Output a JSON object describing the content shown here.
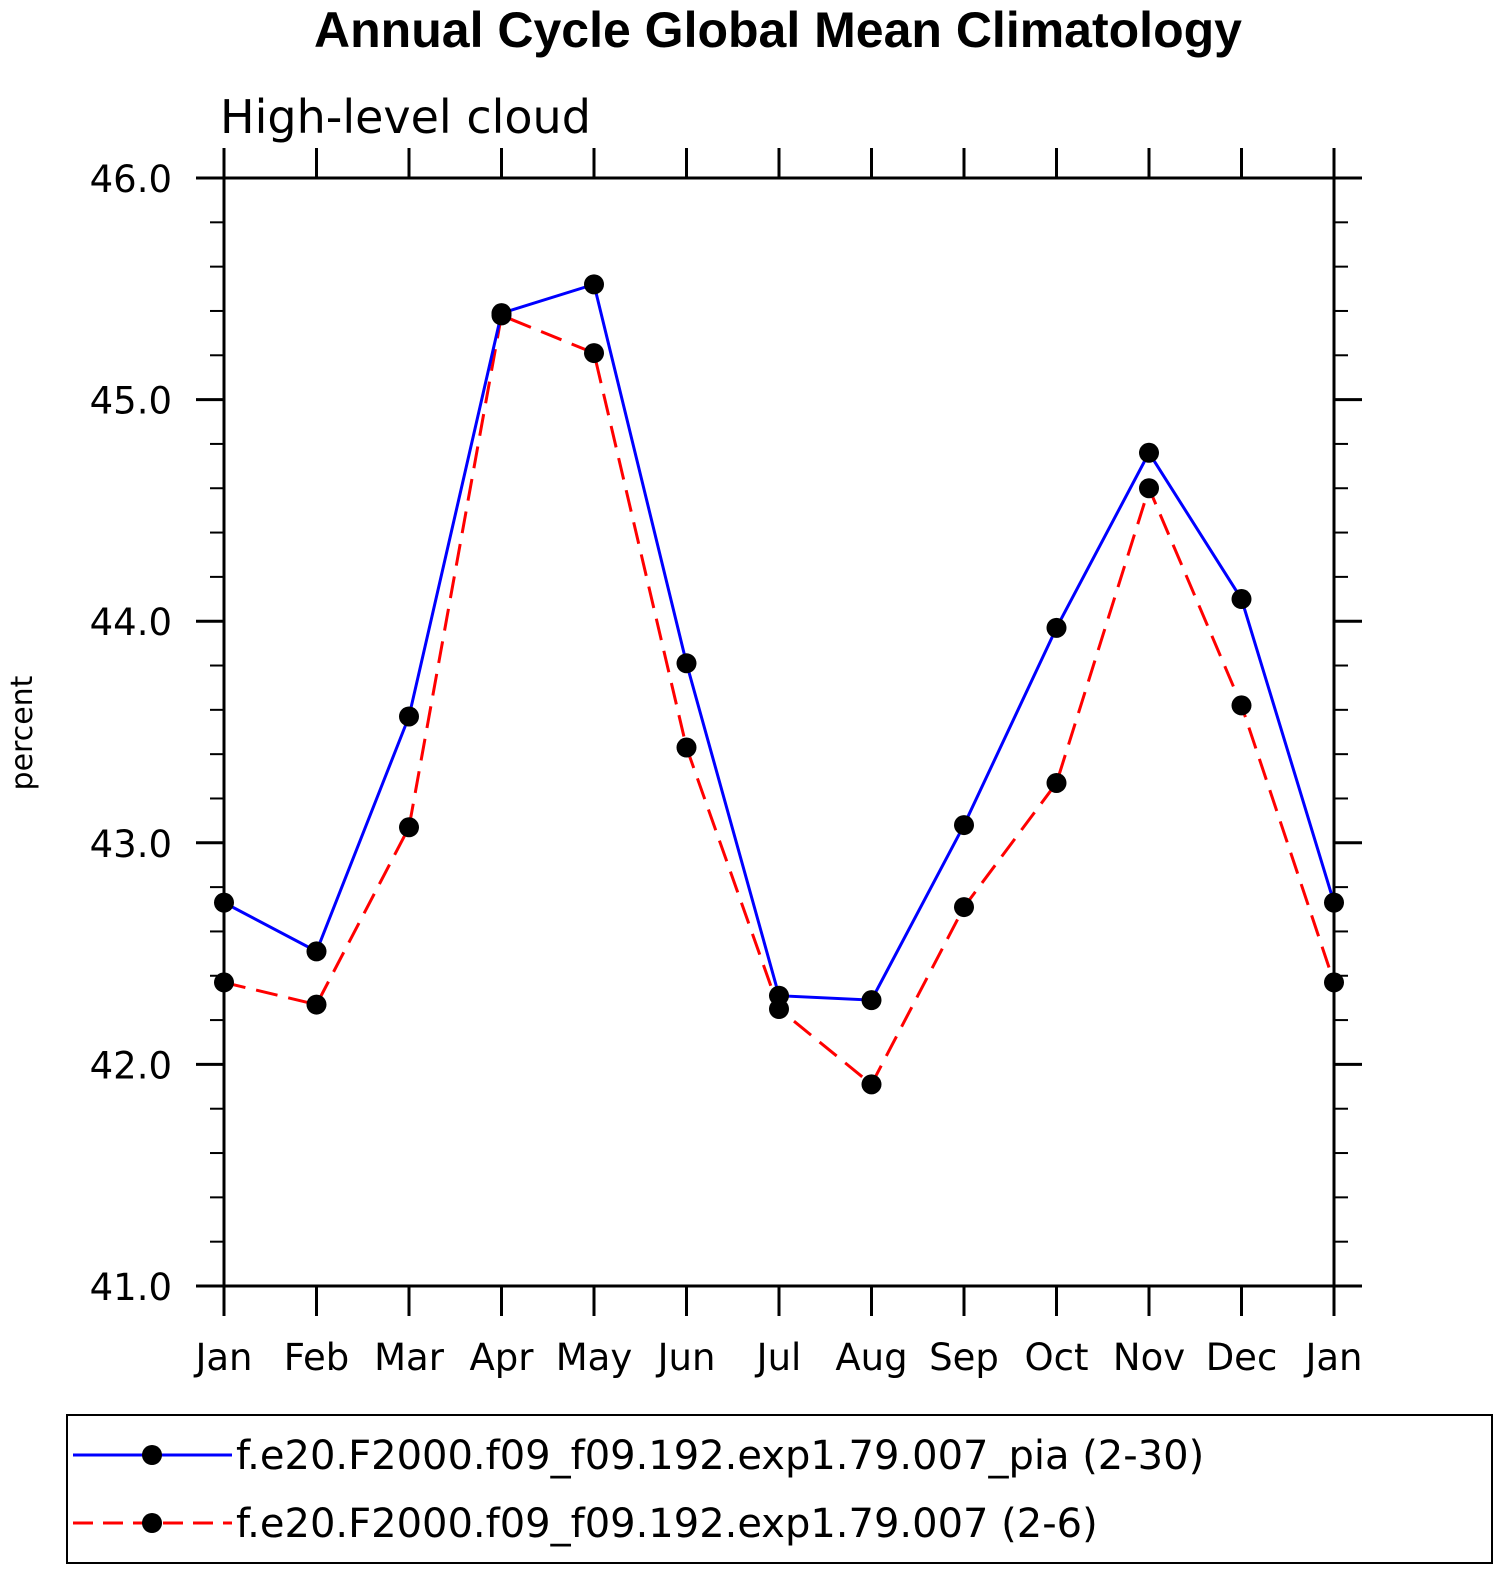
{
  "chart_data": {
    "type": "line",
    "title": "Annual Cycle Global Mean Climatology",
    "subtitle": "High-level cloud",
    "ylabel": "percent",
    "xlabel": "",
    "categories": [
      "Jan",
      "Feb",
      "Mar",
      "Apr",
      "May",
      "Jun",
      "Jul",
      "Aug",
      "Sep",
      "Oct",
      "Nov",
      "Dec",
      "Jan"
    ],
    "ylim": [
      41.0,
      46.0
    ],
    "yticks": [
      "41.0",
      "42.0",
      "43.0",
      "44.0",
      "45.0",
      "46.0"
    ],
    "grid": false,
    "legend_position": "bottom",
    "series": [
      {
        "name": "f.e20.F2000.f09_f09.192.exp1.79.007_pia (2-30)",
        "color": "#0000ff",
        "line_style": "solid",
        "marker": "filled-circle",
        "values": [
          42.73,
          42.51,
          43.57,
          45.39,
          45.52,
          43.81,
          42.31,
          42.29,
          43.08,
          43.97,
          44.76,
          44.1,
          42.73
        ]
      },
      {
        "name": "f.e20.F2000.f09_f09.192.exp1.79.007 (2-6)",
        "color": "#ff0000",
        "line_style": "dashed",
        "marker": "filled-circle",
        "values": [
          42.37,
          42.27,
          43.07,
          45.38,
          45.21,
          43.43,
          42.25,
          41.91,
          42.71,
          43.27,
          44.6,
          43.62,
          42.37
        ]
      }
    ]
  }
}
